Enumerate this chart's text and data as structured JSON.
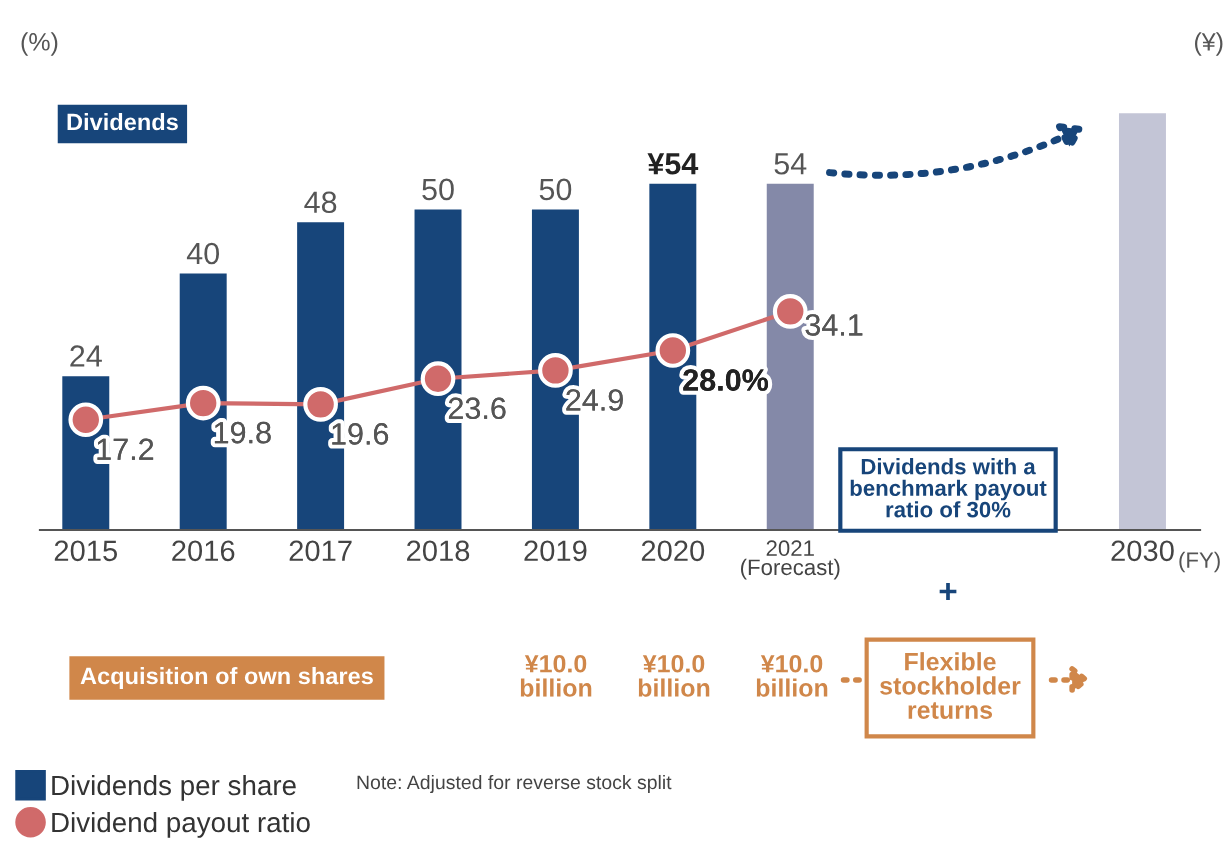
{
  "chart_data": {
    "type": "bar",
    "ylabel": "(%)",
    "y2label": "(¥)",
    "xlabel": "(FY)",
    "categories": [
      "2015",
      "2016",
      "2017",
      "2018",
      "2019",
      "2020",
      "2021\n(Forecast)",
      null,
      null,
      "2030"
    ],
    "tick_labels": "x",
    "grid": false,
    "legend": "bottom left",
    "series": [
      {
        "name": "Dividends per share",
        "colors": [
          "#17457a",
          "#17457a",
          "#17457a",
          "#17457a",
          "#17457a",
          "#17457a",
          "#8489a8",
          null,
          null,
          "#c3c5d6"
        ],
        "values": [
          24,
          40,
          48,
          50,
          50,
          54,
          54,
          null,
          null,
          65
        ],
        "value_labels": [
          "24",
          "40",
          "48",
          "50",
          "50",
          "¥54",
          "54",
          null,
          null,
          null
        ]
      },
      {
        "name": "Dividend payout ratio",
        "type": "line",
        "color": "#d06a6a",
        "marker": "circle",
        "values": [
          17.2,
          19.8,
          19.6,
          23.6,
          24.9,
          28.0,
          34.1,
          null,
          null,
          null
        ],
        "value_labels": [
          "17.2",
          "19.8",
          "19.6",
          "23.6",
          "24.9",
          "28.0%",
          "34.1",
          null,
          null,
          null
        ]
      }
    ],
    "annotations": [
      "Dividends",
      "Dividends with a\nbenchmark payout\nratio of 30%",
      "+",
      "Acquisition of own shares",
      "¥10.0\nbillion",
      "¥10.0\nbillion",
      "¥10.0\nbillion",
      "Flexible\nstockholder\nreturns",
      "Note: Adjusted for reverse stock split"
    ]
  }
}
